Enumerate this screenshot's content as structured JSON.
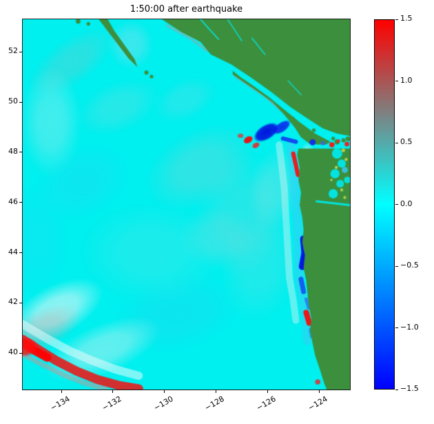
{
  "chart_data": {
    "type": "heatmap",
    "title": "1:50:00 after earthquake",
    "xlabel": "",
    "ylabel": "",
    "xlim": [
      -135.5,
      -122.8
    ],
    "ylim": [
      38.55,
      53.3
    ],
    "grid": false,
    "x_ticks": [
      -134,
      -132,
      -130,
      -128,
      -126,
      -124
    ],
    "x_tick_labels": [
      "−134",
      "−132",
      "−130",
      "−128",
      "−126",
      "−124"
    ],
    "y_ticks": [
      40,
      42,
      44,
      46,
      48,
      50,
      52
    ],
    "y_tick_labels": [
      "40",
      "42",
      "44",
      "46",
      "48",
      "50",
      "52"
    ],
    "colorbar": {
      "vmin": -1.5,
      "vmax": 1.5,
      "tick_values": [
        1.5,
        1.0,
        0.5,
        0.0,
        -0.5,
        -1.0,
        -1.5
      ],
      "tick_labels": [
        "1.5",
        "1.0",
        "0.5",
        "0.0",
        "−0.5",
        "−1.0",
        "−1.5"
      ],
      "color_min": "#0000ff",
      "color_mid": "#00ffff",
      "color_max": "#ff0000",
      "position": "right"
    },
    "ocean_color": "#00efef",
    "land_color": "#3c8f3c",
    "land_polygons": [
      [
        [
          -130.1,
          53.3
        ],
        [
          -129.35,
          52.8
        ],
        [
          -128.6,
          52.4
        ],
        [
          -128.2,
          51.9
        ],
        [
          -127.4,
          51.5
        ],
        [
          -126.6,
          50.95
        ],
        [
          -125.85,
          50.4
        ],
        [
          -125.1,
          49.8
        ],
        [
          -124.45,
          49.35
        ],
        [
          -123.85,
          48.95
        ],
        [
          -123.3,
          48.75
        ],
        [
          -122.8,
          48.65
        ],
        [
          -122.8,
          53.3
        ]
      ],
      [
        [
          -127.35,
          51.1
        ],
        [
          -126.85,
          50.75
        ],
        [
          -126.35,
          50.4
        ],
        [
          -125.8,
          50.0
        ],
        [
          -125.35,
          49.5
        ],
        [
          -124.95,
          49.0
        ],
        [
          -124.7,
          48.6
        ],
        [
          -124.35,
          48.33
        ],
        [
          -123.75,
          48.3
        ],
        [
          -123.55,
          48.42
        ],
        [
          -124.15,
          48.75
        ],
        [
          -124.75,
          49.2
        ],
        [
          -125.35,
          49.7
        ],
        [
          -125.95,
          50.2
        ],
        [
          -126.55,
          50.65
        ],
        [
          -127.05,
          51.0
        ],
        [
          -127.35,
          51.25
        ]
      ],
      [
        [
          -124.8,
          48.15
        ],
        [
          -124.85,
          47.9
        ],
        [
          -124.75,
          47.4
        ],
        [
          -124.8,
          46.9
        ],
        [
          -124.7,
          46.4
        ],
        [
          -124.75,
          45.9
        ],
        [
          -124.65,
          45.4
        ],
        [
          -124.6,
          44.9
        ],
        [
          -124.65,
          44.4
        ],
        [
          -124.55,
          43.9
        ],
        [
          -124.6,
          43.4
        ],
        [
          -124.5,
          42.9
        ],
        [
          -124.45,
          42.4
        ],
        [
          -124.4,
          41.9
        ],
        [
          -124.3,
          41.4
        ],
        [
          -124.35,
          40.9
        ],
        [
          -124.25,
          40.4
        ],
        [
          -124.15,
          39.9
        ],
        [
          -123.95,
          39.3
        ],
        [
          -123.8,
          38.8
        ],
        [
          -123.7,
          38.55
        ],
        [
          -122.8,
          38.55
        ],
        [
          -122.8,
          48.15
        ]
      ],
      [
        [
          -132.55,
          53.3
        ],
        [
          -132.25,
          52.9
        ],
        [
          -131.8,
          52.3
        ],
        [
          -131.4,
          51.75
        ],
        [
          -131.05,
          51.4
        ],
        [
          -131.15,
          51.7
        ],
        [
          -131.5,
          52.2
        ],
        [
          -131.95,
          52.85
        ],
        [
          -132.2,
          53.3
        ]
      ]
    ],
    "land_specks": [
      {
        "x": -133.35,
        "y": 53.22,
        "r": 0.09
      },
      {
        "x": -132.95,
        "y": 53.12,
        "r": 0.07
      },
      {
        "x": -130.7,
        "y": 51.18,
        "r": 0.08
      },
      {
        "x": -130.5,
        "y": 51.02,
        "r": 0.07
      },
      {
        "x": -124.2,
        "y": 48.88,
        "r": 0.07
      },
      {
        "x": -125.0,
        "y": 49.35,
        "r": 0.06
      },
      {
        "x": -123.3,
        "y": 48.42,
        "r": 0.1
      },
      {
        "x": -123.05,
        "y": 48.48,
        "r": 0.08
      },
      {
        "x": -122.88,
        "y": 48.54,
        "r": 0.09
      },
      {
        "x": -123.45,
        "y": 48.55,
        "r": 0.07
      }
    ],
    "ocean_blobs": [
      {
        "x": -133.6,
        "y": 51.6,
        "rx": 2.0,
        "ry": 0.9,
        "rot": -35,
        "c": "#c4b2b2",
        "a": 0.22
      },
      {
        "x": -134.4,
        "y": 49.2,
        "rx": 1.2,
        "ry": 2.2,
        "rot": 0,
        "c": "#bfe9e9",
        "a": 0.35
      },
      {
        "x": -131.8,
        "y": 49.8,
        "rx": 1.7,
        "ry": 1.0,
        "rot": -22,
        "c": "#b3d2d2",
        "a": 0.22
      },
      {
        "x": -128.6,
        "y": 47.4,
        "rx": 2.3,
        "ry": 1.5,
        "rot": -28,
        "c": "#bac6c6",
        "a": 0.26
      },
      {
        "x": -127.0,
        "y": 45.5,
        "rx": 1.8,
        "ry": 2.5,
        "rot": 12,
        "c": "#accfcf",
        "a": 0.22
      },
      {
        "x": -130.5,
        "y": 44.0,
        "rx": 2.8,
        "ry": 2.0,
        "rot": 0,
        "c": "#90dede",
        "a": 0.2
      },
      {
        "x": -133.2,
        "y": 46.8,
        "rx": 1.9,
        "ry": 1.4,
        "rot": -24,
        "c": "#2ad5f0",
        "a": 0.3
      },
      {
        "x": -129.5,
        "y": 41.6,
        "rx": 2.5,
        "ry": 1.5,
        "rot": -14,
        "c": "#32cbee",
        "a": 0.24
      },
      {
        "x": -134.2,
        "y": 41.7,
        "rx": 2.0,
        "ry": 1.0,
        "rot": -27,
        "c": "#def6f6",
        "a": 0.65
      },
      {
        "x": -132.4,
        "y": 40.15,
        "rx": 2.4,
        "ry": 1.0,
        "rot": -22,
        "c": "#c8efef",
        "a": 0.5
      },
      {
        "x": -134.7,
        "y": 40.95,
        "rx": 1.6,
        "ry": 0.8,
        "rot": -25,
        "c": "#d79595",
        "a": 0.3
      },
      {
        "x": -126.3,
        "y": 43.5,
        "rx": 1.5,
        "ry": 2.3,
        "rot": 8,
        "c": "#9fd6d6",
        "a": 0.2
      },
      {
        "x": -125.7,
        "y": 46.6,
        "rx": 1.0,
        "ry": 1.7,
        "rot": 12,
        "c": "#c2dcdc",
        "a": 0.25
      },
      {
        "x": -131.3,
        "y": 52.3,
        "rx": 0.9,
        "ry": 1.0,
        "rot": 0,
        "c": "#a6dcea",
        "a": 0.35
      },
      {
        "x": -129.2,
        "y": 50.1,
        "rx": 1.3,
        "ry": 0.8,
        "rot": -25,
        "c": "#9cd2dc",
        "a": 0.22
      },
      {
        "x": -135.0,
        "y": 44.5,
        "rx": 1.3,
        "ry": 2.2,
        "rot": 0,
        "c": "#27d8f0",
        "a": 0.22
      },
      {
        "x": -128.0,
        "y": 44.6,
        "rx": 1.5,
        "ry": 1.2,
        "rot": 0,
        "c": "#b9d4d4",
        "a": 0.18
      }
    ],
    "strokes": [
      {
        "p": [
          [
            -135.5,
            41.15
          ],
          [
            -134.6,
            40.6
          ],
          [
            -133.7,
            40.1
          ],
          [
            -132.8,
            39.7
          ],
          [
            -131.9,
            39.35
          ],
          [
            -131.0,
            39.1
          ]
        ],
        "w": 12,
        "c": "#e6fbfb",
        "a": 0.55
      },
      {
        "p": [
          [
            -135.5,
            40.55
          ],
          [
            -134.9,
            40.15
          ],
          [
            -134.2,
            39.7
          ],
          [
            -133.4,
            39.28
          ],
          [
            -132.6,
            38.95
          ],
          [
            -131.8,
            38.72
          ],
          [
            -131.0,
            38.58
          ]
        ],
        "w": 13,
        "c": "#e31f1f",
        "a": 0.92
      },
      {
        "p": [
          [
            -135.5,
            40.4
          ],
          [
            -135.05,
            40.1
          ],
          [
            -134.55,
            39.82
          ]
        ],
        "w": 12,
        "c": "#ff0000",
        "a": 0.95
      },
      {
        "p": [
          [
            -135.5,
            39.95
          ],
          [
            -134.75,
            39.55
          ],
          [
            -133.95,
            39.15
          ],
          [
            -133.1,
            38.8
          ],
          [
            -132.3,
            38.58
          ]
        ],
        "w": 7,
        "c": "#d98f8f",
        "a": 0.45
      },
      {
        "p": [
          [
            -127.25,
            51.05
          ],
          [
            -126.1,
            50.25
          ],
          [
            -125.1,
            49.35
          ],
          [
            -124.55,
            48.7
          ]
        ],
        "w": 4,
        "c": "#c27f7f",
        "a": 0.5
      },
      {
        "p": [
          [
            -129.9,
            53.05
          ],
          [
            -129.0,
            52.55
          ],
          [
            -128.35,
            52.05
          ]
        ],
        "w": 4,
        "c": "#c49090",
        "a": 0.4
      },
      {
        "p": [
          [
            -125.1,
            48.3
          ],
          [
            -125.0,
            47.6
          ],
          [
            -124.95,
            46.8
          ],
          [
            -124.9,
            46.0
          ],
          [
            -124.85,
            45.2
          ],
          [
            -124.8,
            44.4
          ],
          [
            -124.8,
            43.6
          ],
          [
            -124.75,
            42.8
          ],
          [
            -124.6,
            42.0
          ],
          [
            -124.5,
            41.2
          ],
          [
            -124.45,
            40.5
          ]
        ],
        "w": 13,
        "c": "#49c3f5",
        "a": 0.4
      },
      {
        "p": [
          [
            -125.55,
            48.3
          ],
          [
            -125.45,
            47.5
          ],
          [
            -125.35,
            46.6
          ],
          [
            -125.3,
            45.7
          ],
          [
            -125.25,
            44.8
          ],
          [
            -125.2,
            43.9
          ],
          [
            -125.15,
            43.0
          ],
          [
            -125.0,
            42.1
          ],
          [
            -124.9,
            41.3
          ]
        ],
        "w": 10,
        "c": "#d4f4f4",
        "a": 0.45
      },
      {
        "p": [
          [
            -124.6,
            44.55
          ],
          [
            -124.55,
            44.0
          ],
          [
            -124.65,
            43.45
          ]
        ],
        "w": 10,
        "c": "#0007e0",
        "a": 0.92
      },
      {
        "p": [
          [
            -124.45,
            46.2
          ],
          [
            -124.4,
            45.7
          ]
        ],
        "w": 6,
        "c": "#1e49f0",
        "a": 0.8
      },
      {
        "p": [
          [
            -124.5,
            45.25
          ],
          [
            -124.45,
            44.85
          ]
        ],
        "w": 6,
        "c": "#2a71f5",
        "a": 0.6
      },
      {
        "p": [
          [
            -124.7,
            42.95
          ],
          [
            -124.6,
            42.45
          ]
        ],
        "w": 7,
        "c": "#1340f0",
        "a": 0.8
      },
      {
        "p": [
          [
            -124.5,
            42.15
          ],
          [
            -124.4,
            41.8
          ]
        ],
        "w": 5,
        "c": "#2a67f0",
        "a": 0.7
      },
      {
        "p": [
          [
            -124.5,
            41.62
          ],
          [
            -124.38,
            41.2
          ]
        ],
        "w": 8,
        "c": "#f70d0d",
        "a": 0.95
      },
      {
        "p": [
          [
            -124.35,
            40.95
          ],
          [
            -124.3,
            40.65
          ]
        ],
        "w": 4,
        "c": "#2a7ff0",
        "a": 0.7
      },
      {
        "p": [
          [
            -125.0,
            47.95
          ],
          [
            -124.9,
            47.5
          ],
          [
            -124.82,
            47.1
          ]
        ],
        "w": 6,
        "c": "#f71111",
        "a": 0.95
      },
      {
        "p": [
          [
            -125.4,
            48.55
          ],
          [
            -124.9,
            48.42
          ]
        ],
        "w": 6,
        "c": "#1130f2",
        "a": 0.85
      },
      {
        "p": [
          [
            -132.3,
            53.0
          ],
          [
            -131.7,
            52.2
          ],
          [
            -131.2,
            51.6
          ]
        ],
        "w": 2.5,
        "c": "#b06868",
        "a": 0.4
      }
    ],
    "wave_blobs": [
      {
        "x": -126.05,
        "y": 48.8,
        "rx": 0.55,
        "ry": 0.3,
        "rot": -32,
        "c": "#0000dd",
        "a": 0.9,
        "h": 0.75
      },
      {
        "x": -125.45,
        "y": 49.0,
        "rx": 0.4,
        "ry": 0.2,
        "rot": -35,
        "c": "#0a14ec",
        "a": 0.85,
        "h": 0.75
      },
      {
        "x": -126.75,
        "y": 48.5,
        "rx": 0.2,
        "ry": 0.14,
        "rot": -30,
        "c": "#ff0000",
        "a": 0.95,
        "h": 0.8
      },
      {
        "x": -126.45,
        "y": 48.28,
        "rx": 0.16,
        "ry": 0.11,
        "rot": -30,
        "c": "#f32222",
        "a": 0.9,
        "h": 0.8
      },
      {
        "x": -127.05,
        "y": 48.66,
        "rx": 0.13,
        "ry": 0.1,
        "rot": 0,
        "c": "#e03535",
        "a": 0.8,
        "h": 0.8
      },
      {
        "x": -135.45,
        "y": 40.25,
        "rx": 0.55,
        "ry": 0.4,
        "rot": 0,
        "c": "#ff0f0f",
        "a": 0.9,
        "h": 0.7
      },
      {
        "x": -124.45,
        "y": 47.9,
        "rx": 0.28,
        "ry": 0.5,
        "rot": 0,
        "c": "#e8fafa",
        "a": 0.5,
        "h": 0.5
      }
    ],
    "post_strokes": [
      {
        "p": [
          [
            -124.1,
            46.05
          ],
          [
            -122.8,
            45.9
          ]
        ],
        "w": 3,
        "c": "#00e8e8",
        "a": 0.95
      },
      {
        "p": [
          [
            -128.6,
            53.3
          ],
          [
            -127.9,
            52.5
          ]
        ],
        "w": 2,
        "c": "#00e8e8",
        "a": 0.8
      },
      {
        "p": [
          [
            -127.55,
            53.3
          ],
          [
            -127.0,
            52.45
          ]
        ],
        "w": 2,
        "c": "#00e8e8",
        "a": 0.7
      },
      {
        "p": [
          [
            -126.6,
            52.55
          ],
          [
            -126.1,
            51.9
          ]
        ],
        "w": 2,
        "c": "#00e8e8",
        "a": 0.7
      },
      {
        "p": [
          [
            -125.2,
            50.85
          ],
          [
            -124.7,
            50.3
          ]
        ],
        "w": 2,
        "c": "#00e8e8",
        "a": 0.6
      }
    ],
    "dots": [
      {
        "x": -123.5,
        "y": 48.3,
        "r": 0.1,
        "c": "#ff1010",
        "a": 0.95
      },
      {
        "x": -122.92,
        "y": 48.33,
        "r": 0.09,
        "c": "#ff1010",
        "a": 0.9
      },
      {
        "x": -123.25,
        "y": 48.45,
        "r": 0.07,
        "c": "#e83030",
        "a": 0.85
      },
      {
        "x": -124.25,
        "y": 48.4,
        "r": 0.12,
        "c": "#1028f0",
        "a": 0.9
      },
      {
        "x": -123.85,
        "y": 48.36,
        "r": 0.08,
        "c": "#4060ff",
        "a": 0.8
      },
      {
        "x": -123.3,
        "y": 47.95,
        "r": 0.2,
        "c": "#00e8e8",
        "a": 0.95
      },
      {
        "x": -123.12,
        "y": 47.55,
        "r": 0.16,
        "c": "#00e8e8",
        "a": 0.95
      },
      {
        "x": -123.38,
        "y": 47.15,
        "r": 0.18,
        "c": "#00e8e8",
        "a": 0.95
      },
      {
        "x": -123.18,
        "y": 46.75,
        "r": 0.15,
        "c": "#00e8e8",
        "a": 0.9
      },
      {
        "x": -123.45,
        "y": 46.35,
        "r": 0.18,
        "c": "#00e8e8",
        "a": 0.95
      },
      {
        "x": -123.0,
        "y": 47.3,
        "r": 0.12,
        "c": "#35c8f0",
        "a": 0.85
      },
      {
        "x": -122.9,
        "y": 46.9,
        "r": 0.13,
        "c": "#00e8e8",
        "a": 0.9
      },
      {
        "x": -123.06,
        "y": 48.08,
        "r": 0.07,
        "c": "#b7d455",
        "a": 0.95
      },
      {
        "x": -123.33,
        "y": 47.4,
        "r": 0.06,
        "c": "#b7d455",
        "a": 0.95
      },
      {
        "x": -123.12,
        "y": 46.5,
        "r": 0.06,
        "c": "#b7d455",
        "a": 0.9
      },
      {
        "x": -122.95,
        "y": 47.72,
        "r": 0.06,
        "c": "#b7d455",
        "a": 0.9
      },
      {
        "x": -123.52,
        "y": 46.9,
        "r": 0.05,
        "c": "#b7d455",
        "a": 0.85
      },
      {
        "x": -123.0,
        "y": 46.2,
        "r": 0.06,
        "c": "#b7d455",
        "a": 0.85
      },
      {
        "x": -124.05,
        "y": 38.85,
        "r": 0.1,
        "c": "#f02020",
        "a": 0.8
      }
    ]
  }
}
